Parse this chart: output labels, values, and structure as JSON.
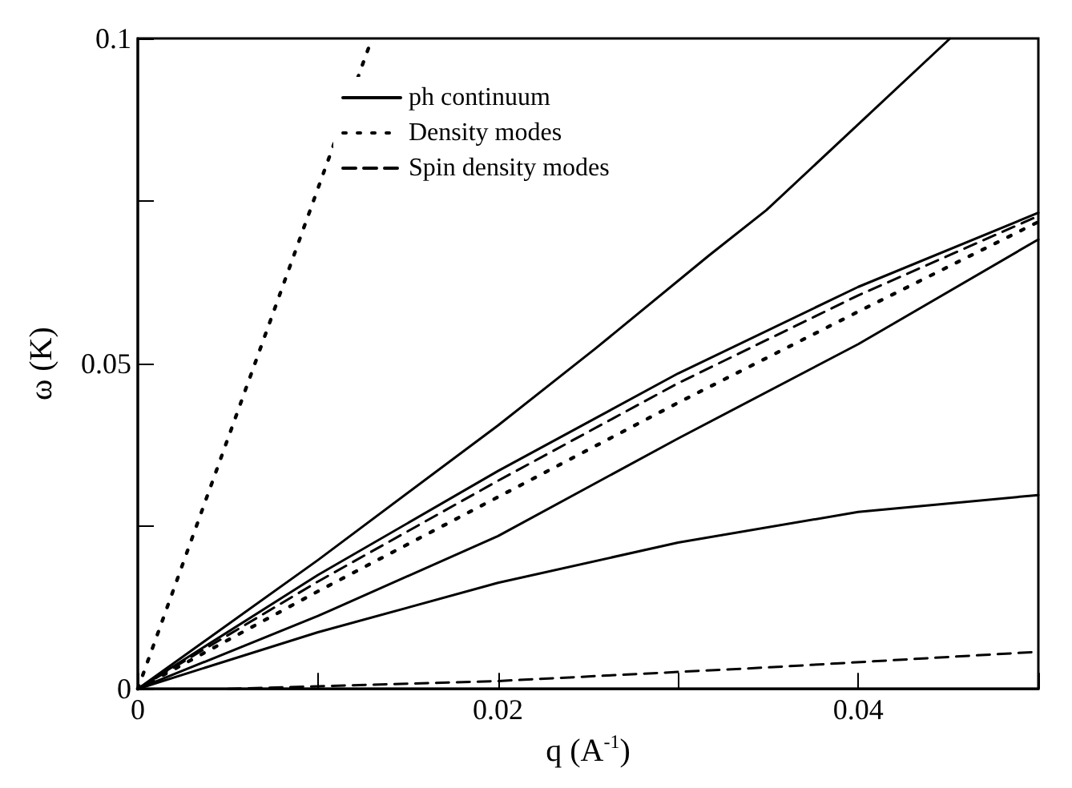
{
  "chart_data": {
    "type": "line",
    "xlabel": "q (A$^{-1}$)",
    "ylabel": "ω (K)",
    "xlim": [
      0,
      0.05
    ],
    "ylim": [
      0,
      0.1
    ],
    "xticks": [
      0,
      {
        "value": 0.01,
        "label": null
      },
      0.02,
      {
        "value": 0.03,
        "label": null
      },
      0.04,
      {
        "value": 0.05,
        "label": null
      }
    ],
    "yticks": [
      0,
      {
        "value": 0.025,
        "label": null
      },
      0.05,
      {
        "value": 0.075,
        "label": null
      },
      0.1
    ],
    "grid": false,
    "legend": "top left",
    "marker": "none",
    "series": [
      {
        "name": "ph continuum",
        "color": "#000000",
        "line_style": "solid",
        "x": [
          0,
          0.01,
          0.02,
          0.0254,
          0.0317,
          0.0349,
          0.0451
        ],
        "values": [
          0,
          0.0198,
          0.0405,
          0.0523,
          0.0666,
          0.0736,
          0.1
        ]
      },
      {
        "name": "Density modes",
        "color": "#000000",
        "line_style": "dotted",
        "x": [
          0,
          0.013
        ],
        "values": [
          0,
          0.1
        ]
      },
      {
        "name": "Spin density modes",
        "color": "#000000",
        "line_style": "dashed",
        "x": [
          0,
          0.01,
          0.02,
          0.03,
          0.04,
          0.05
        ],
        "values": [
          0,
          0.0165,
          0.032,
          0.047,
          0.0605,
          0.0727
        ]
      },
      {
        "color": "#000000",
        "line_style": "solid",
        "x": [
          0,
          0.01,
          0.02,
          0.03,
          0.04,
          0.05
        ],
        "values": [
          0,
          0.0175,
          0.0335,
          0.0485,
          0.0618,
          0.0732
        ]
      },
      {
        "color": "#000000",
        "line_style": "dotted",
        "x": [
          0,
          0.01,
          0.02,
          0.03,
          0.04,
          0.05
        ],
        "values": [
          0,
          0.015,
          0.0295,
          0.044,
          0.058,
          0.0718
        ]
      },
      {
        "color": "#000000",
        "line_style": "solid",
        "x": [
          0,
          0.01,
          0.02,
          0.03,
          0.04,
          0.05
        ],
        "values": [
          0,
          0.0112,
          0.0235,
          0.0385,
          0.053,
          0.0691
        ]
      },
      {
        "color": "#000000",
        "line_style": "solid",
        "x": [
          0,
          0.01,
          0.02,
          0.03,
          0.04,
          0.05
        ],
        "values": [
          0,
          0.0087,
          0.0163,
          0.0225,
          0.0272,
          0.0298
        ]
      },
      {
        "color": "#000000",
        "line_style": "dashed",
        "x": [
          0.005,
          0.02,
          0.035,
          0.05
        ],
        "values": [
          0,
          0.0012,
          0.0033,
          0.0057
        ]
      }
    ]
  }
}
